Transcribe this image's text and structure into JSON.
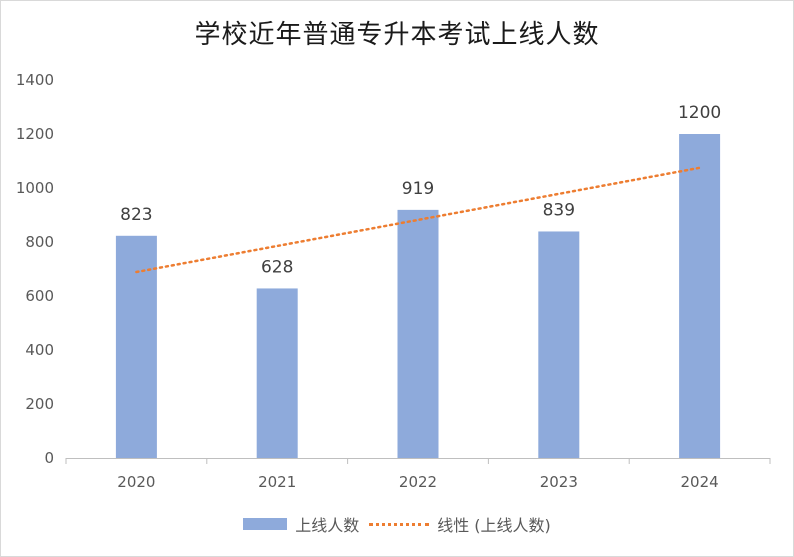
{
  "chart_data": {
    "type": "bar",
    "title": "学校近年普通专升本考试上线人数",
    "categories": [
      "2020",
      "2021",
      "2022",
      "2023",
      "2024"
    ],
    "series": [
      {
        "name": "上线人数",
        "values": [
          823,
          628,
          919,
          839,
          1200
        ],
        "color": "#8eaadb"
      }
    ],
    "trendline": {
      "name": "线性 (上线人数)",
      "type": "linear",
      "color": "#ed7d31",
      "style": "dotted"
    },
    "ylim": [
      0,
      1400
    ],
    "yticks": [
      "0",
      "200",
      "400",
      "600",
      "800",
      "1000",
      "1200",
      "1400"
    ],
    "xlabel": "",
    "ylabel": "",
    "grid": false,
    "legend_position": "bottom",
    "data_labels": [
      "823",
      "628",
      "919",
      "839",
      "1200"
    ]
  },
  "legend": {
    "bar_label": "上线人数",
    "trend_label": "线性 (上线人数)"
  }
}
